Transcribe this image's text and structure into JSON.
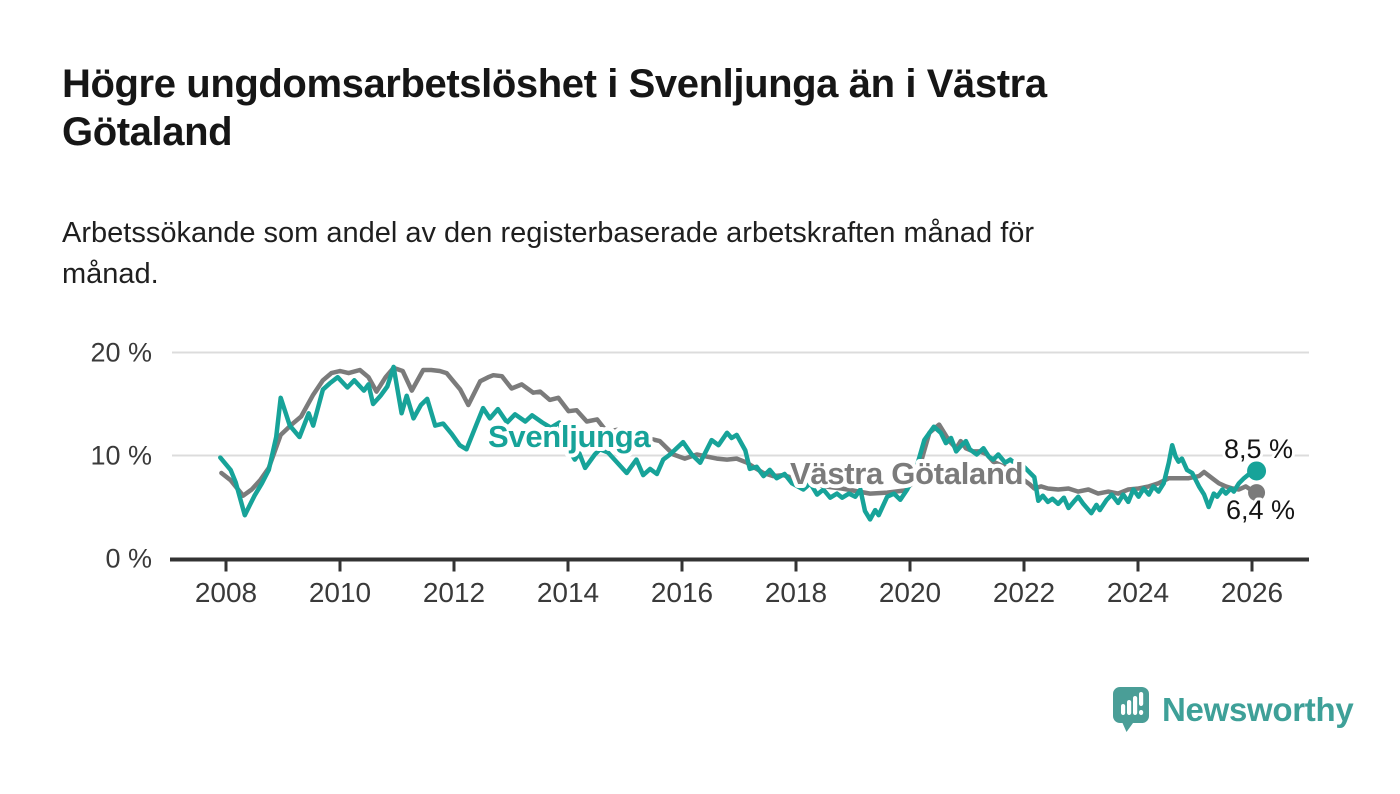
{
  "header": {
    "title": "Högre ungdomsarbetslöshet i Svenljunga än i Västra Götaland",
    "title_lines": [
      "Högre ungdomsarbetslöshet i Svenljunga än i Västra",
      "Götaland"
    ],
    "subtitle": "Arbetssökande som andel av den registerbaserade arbetskraften månad för månad.",
    "subtitle_lines": [
      "Arbetssökande som andel av den registerbaserade arbetskraften månad för",
      "månad."
    ]
  },
  "branding": {
    "wordmark": "Newsworthy",
    "logo_icon": "speech-bubble-bar-chart-icon",
    "logo_color": "#4a9e97",
    "wordmark_color": "#3ea098"
  },
  "chart_data": {
    "type": "line",
    "unit": "%",
    "grid": "horizontal",
    "x_axis": {
      "ticks": [
        2008,
        2010,
        2012,
        2014,
        2016,
        2018,
        2020,
        2022,
        2024,
        2026
      ],
      "tick_labels": [
        "2008",
        "2010",
        "2012",
        "2014",
        "2016",
        "2018",
        "2020",
        "2022",
        "2024",
        "2026"
      ],
      "range": [
        2007.8,
        2027.1
      ]
    },
    "y_axis": {
      "ticks": [
        0,
        10,
        20
      ],
      "tick_labels": [
        "0 %",
        "10 %",
        "20 %"
      ],
      "range": [
        0,
        21
      ]
    },
    "series": [
      {
        "name": "Västra Götaland",
        "color": "#7b7b7b",
        "end_label": "6,4 %",
        "end_value": 6.4,
        "points": [
          [
            2007.92,
            8.3
          ],
          [
            2008.08,
            7.6
          ],
          [
            2008.3,
            6.1
          ],
          [
            2008.45,
            6.7
          ],
          [
            2008.6,
            7.6
          ],
          [
            2008.75,
            8.8
          ],
          [
            2008.96,
            12.0
          ],
          [
            2009.15,
            13.0
          ],
          [
            2009.32,
            13.8
          ],
          [
            2009.53,
            15.9
          ],
          [
            2009.7,
            17.3
          ],
          [
            2009.85,
            18.0
          ],
          [
            2010.0,
            18.2
          ],
          [
            2010.15,
            18.0
          ],
          [
            2010.35,
            18.3
          ],
          [
            2010.5,
            17.6
          ],
          [
            2010.64,
            16.2
          ],
          [
            2010.8,
            17.6
          ],
          [
            2010.94,
            18.5
          ],
          [
            2011.1,
            18.2
          ],
          [
            2011.26,
            16.3
          ],
          [
            2011.46,
            18.3
          ],
          [
            2011.6,
            18.3
          ],
          [
            2011.75,
            18.2
          ],
          [
            2011.87,
            18.0
          ],
          [
            2012.11,
            16.4
          ],
          [
            2012.25,
            14.9
          ],
          [
            2012.46,
            17.2
          ],
          [
            2012.6,
            17.6
          ],
          [
            2012.69,
            17.8
          ],
          [
            2012.84,
            17.7
          ],
          [
            2013.01,
            16.5
          ],
          [
            2013.19,
            16.9
          ],
          [
            2013.39,
            16.1
          ],
          [
            2013.51,
            16.2
          ],
          [
            2013.68,
            15.4
          ],
          [
            2013.83,
            15.6
          ],
          [
            2014.01,
            14.3
          ],
          [
            2014.15,
            14.4
          ],
          [
            2014.33,
            13.3
          ],
          [
            2014.51,
            13.5
          ],
          [
            2014.68,
            12.3
          ],
          [
            2014.86,
            12.5
          ],
          [
            2015.03,
            12.0
          ],
          [
            2015.2,
            12.2
          ],
          [
            2015.38,
            11.7
          ],
          [
            2015.61,
            11.4
          ],
          [
            2015.85,
            10.1
          ],
          [
            2016.05,
            9.7
          ],
          [
            2016.26,
            10.1
          ],
          [
            2016.43,
            9.9
          ],
          [
            2016.61,
            9.7
          ],
          [
            2016.79,
            9.6
          ],
          [
            2016.96,
            9.7
          ],
          [
            2017.14,
            9.3
          ],
          [
            2017.28,
            8.8
          ],
          [
            2017.43,
            8.3
          ],
          [
            2017.6,
            8.0
          ],
          [
            2017.78,
            8.1
          ],
          [
            2017.95,
            7.8
          ],
          [
            2018.2,
            7.4
          ],
          [
            2018.5,
            7.0
          ],
          [
            2018.8,
            6.8
          ],
          [
            2019.0,
            6.6
          ],
          [
            2019.3,
            6.3
          ],
          [
            2019.6,
            6.4
          ],
          [
            2019.9,
            6.6
          ],
          [
            2020.1,
            7.6
          ],
          [
            2020.25,
            10.5
          ],
          [
            2020.34,
            12.2
          ],
          [
            2020.51,
            13.0
          ],
          [
            2020.69,
            11.4
          ],
          [
            2020.81,
            10.7
          ],
          [
            2020.89,
            11.4
          ],
          [
            2020.98,
            10.7
          ],
          [
            2021.11,
            10.4
          ],
          [
            2021.23,
            10.4
          ],
          [
            2021.35,
            10.1
          ],
          [
            2021.46,
            9.4
          ],
          [
            2021.58,
            9.1
          ],
          [
            2021.7,
            8.8
          ],
          [
            2021.9,
            8.0
          ],
          [
            2022.1,
            7.2
          ],
          [
            2022.18,
            6.8
          ],
          [
            2022.3,
            7.0
          ],
          [
            2022.42,
            6.8
          ],
          [
            2022.6,
            6.7
          ],
          [
            2022.78,
            6.8
          ],
          [
            2022.95,
            6.5
          ],
          [
            2023.13,
            6.7
          ],
          [
            2023.3,
            6.3
          ],
          [
            2023.48,
            6.5
          ],
          [
            2023.65,
            6.3
          ],
          [
            2023.83,
            6.7
          ],
          [
            2024.01,
            6.8
          ],
          [
            2024.19,
            7.0
          ],
          [
            2024.36,
            7.3
          ],
          [
            2024.54,
            7.8
          ],
          [
            2024.71,
            7.8
          ],
          [
            2024.89,
            7.8
          ],
          [
            2025.07,
            8.0
          ],
          [
            2025.16,
            8.4
          ],
          [
            2025.3,
            7.8
          ],
          [
            2025.42,
            7.3
          ],
          [
            2025.54,
            7.0
          ],
          [
            2025.66,
            6.8
          ],
          [
            2025.77,
            6.7
          ],
          [
            2025.89,
            7.0
          ],
          [
            2026.0,
            6.6
          ],
          [
            2026.08,
            6.4
          ]
        ]
      },
      {
        "name": "Svenljunga",
        "color": "#17a399",
        "end_label": "8,5 %",
        "end_value": 8.5,
        "points": [
          [
            2007.9,
            9.8
          ],
          [
            2008.08,
            8.6
          ],
          [
            2008.17,
            7.4
          ],
          [
            2008.33,
            4.2
          ],
          [
            2008.42,
            5.2
          ],
          [
            2008.5,
            6.1
          ],
          [
            2008.63,
            7.3
          ],
          [
            2008.75,
            8.6
          ],
          [
            2008.88,
            11.8
          ],
          [
            2008.96,
            15.6
          ],
          [
            2009.12,
            12.9
          ],
          [
            2009.29,
            11.8
          ],
          [
            2009.45,
            14.1
          ],
          [
            2009.53,
            12.9
          ],
          [
            2009.7,
            16.4
          ],
          [
            2009.82,
            17.0
          ],
          [
            2009.96,
            17.6
          ],
          [
            2010.13,
            16.6
          ],
          [
            2010.25,
            17.3
          ],
          [
            2010.42,
            16.3
          ],
          [
            2010.5,
            16.9
          ],
          [
            2010.58,
            15.0
          ],
          [
            2010.71,
            15.8
          ],
          [
            2010.83,
            16.7
          ],
          [
            2010.94,
            18.6
          ],
          [
            2011.08,
            14.1
          ],
          [
            2011.17,
            15.8
          ],
          [
            2011.29,
            13.6
          ],
          [
            2011.42,
            14.9
          ],
          [
            2011.53,
            15.5
          ],
          [
            2011.67,
            12.9
          ],
          [
            2011.81,
            13.1
          ],
          [
            2011.96,
            12.1
          ],
          [
            2012.1,
            11.0
          ],
          [
            2012.22,
            10.6
          ],
          [
            2012.4,
            13.1
          ],
          [
            2012.51,
            14.6
          ],
          [
            2012.63,
            13.6
          ],
          [
            2012.77,
            14.5
          ],
          [
            2012.93,
            13.2
          ],
          [
            2013.07,
            14.0
          ],
          [
            2013.25,
            13.3
          ],
          [
            2013.37,
            13.9
          ],
          [
            2013.55,
            13.2
          ],
          [
            2013.7,
            12.7
          ],
          [
            2013.85,
            13.2
          ],
          [
            2014.0,
            10.7
          ],
          [
            2014.12,
            9.6
          ],
          [
            2014.2,
            10.2
          ],
          [
            2014.3,
            8.8
          ],
          [
            2014.47,
            10.1
          ],
          [
            2014.56,
            10.6
          ],
          [
            2014.7,
            10.3
          ],
          [
            2014.8,
            9.7
          ],
          [
            2015.03,
            8.3
          ],
          [
            2015.2,
            9.6
          ],
          [
            2015.32,
            8.1
          ],
          [
            2015.44,
            8.7
          ],
          [
            2015.56,
            8.2
          ],
          [
            2015.67,
            9.6
          ],
          [
            2015.79,
            10.1
          ],
          [
            2016.02,
            11.3
          ],
          [
            2016.17,
            10.1
          ],
          [
            2016.32,
            9.3
          ],
          [
            2016.52,
            11.5
          ],
          [
            2016.64,
            11.0
          ],
          [
            2016.79,
            12.2
          ],
          [
            2016.87,
            11.7
          ],
          [
            2016.96,
            12.0
          ],
          [
            2017.11,
            10.5
          ],
          [
            2017.19,
            8.7
          ],
          [
            2017.31,
            8.9
          ],
          [
            2017.43,
            8.0
          ],
          [
            2017.54,
            8.6
          ],
          [
            2017.66,
            7.8
          ],
          [
            2017.8,
            8.2
          ],
          [
            2017.93,
            7.3
          ],
          [
            2018.13,
            6.7
          ],
          [
            2018.25,
            7.3
          ],
          [
            2018.37,
            6.2
          ],
          [
            2018.48,
            6.7
          ],
          [
            2018.6,
            5.9
          ],
          [
            2018.72,
            6.3
          ],
          [
            2018.81,
            5.9
          ],
          [
            2018.93,
            6.3
          ],
          [
            2019.04,
            6.0
          ],
          [
            2019.13,
            6.7
          ],
          [
            2019.21,
            4.6
          ],
          [
            2019.3,
            3.8
          ],
          [
            2019.39,
            4.7
          ],
          [
            2019.45,
            4.2
          ],
          [
            2019.6,
            6.0
          ],
          [
            2019.72,
            6.3
          ],
          [
            2019.83,
            5.7
          ],
          [
            2019.95,
            6.7
          ],
          [
            2020.07,
            8.0
          ],
          [
            2020.25,
            11.5
          ],
          [
            2020.42,
            12.8
          ],
          [
            2020.54,
            12.2
          ],
          [
            2020.63,
            11.2
          ],
          [
            2020.72,
            11.7
          ],
          [
            2020.81,
            10.4
          ],
          [
            2020.89,
            10.9
          ],
          [
            2020.98,
            11.4
          ],
          [
            2021.05,
            10.6
          ],
          [
            2021.17,
            10.1
          ],
          [
            2021.29,
            10.7
          ],
          [
            2021.38,
            9.9
          ],
          [
            2021.46,
            9.6
          ],
          [
            2021.55,
            10.1
          ],
          [
            2021.67,
            9.3
          ],
          [
            2021.76,
            9.6
          ],
          [
            2021.85,
            9.2
          ],
          [
            2022.0,
            8.9
          ],
          [
            2022.18,
            7.9
          ],
          [
            2022.25,
            5.6
          ],
          [
            2022.33,
            6.1
          ],
          [
            2022.42,
            5.5
          ],
          [
            2022.5,
            5.8
          ],
          [
            2022.6,
            5.3
          ],
          [
            2022.7,
            5.9
          ],
          [
            2022.78,
            4.9
          ],
          [
            2022.87,
            5.5
          ],
          [
            2022.95,
            6.0
          ],
          [
            2023.04,
            5.3
          ],
          [
            2023.18,
            4.4
          ],
          [
            2023.27,
            5.2
          ],
          [
            2023.33,
            4.7
          ],
          [
            2023.45,
            5.7
          ],
          [
            2023.54,
            6.2
          ],
          [
            2023.65,
            5.4
          ],
          [
            2023.74,
            6.2
          ],
          [
            2023.83,
            5.5
          ],
          [
            2023.92,
            6.7
          ],
          [
            2024.01,
            6.0
          ],
          [
            2024.1,
            6.8
          ],
          [
            2024.19,
            6.2
          ],
          [
            2024.27,
            7.0
          ],
          [
            2024.36,
            6.5
          ],
          [
            2024.45,
            7.3
          ],
          [
            2024.54,
            9.3
          ],
          [
            2024.6,
            11.0
          ],
          [
            2024.66,
            9.9
          ],
          [
            2024.71,
            9.4
          ],
          [
            2024.77,
            9.7
          ],
          [
            2024.86,
            8.6
          ],
          [
            2024.95,
            8.3
          ],
          [
            2025.07,
            7.0
          ],
          [
            2025.16,
            6.2
          ],
          [
            2025.24,
            5.0
          ],
          [
            2025.33,
            6.3
          ],
          [
            2025.39,
            6.0
          ],
          [
            2025.48,
            6.7
          ],
          [
            2025.54,
            6.3
          ],
          [
            2025.63,
            6.8
          ],
          [
            2025.68,
            6.5
          ],
          [
            2025.77,
            7.3
          ],
          [
            2025.86,
            7.8
          ],
          [
            2025.95,
            8.2
          ],
          [
            2026.08,
            8.5
          ]
        ]
      }
    ]
  }
}
